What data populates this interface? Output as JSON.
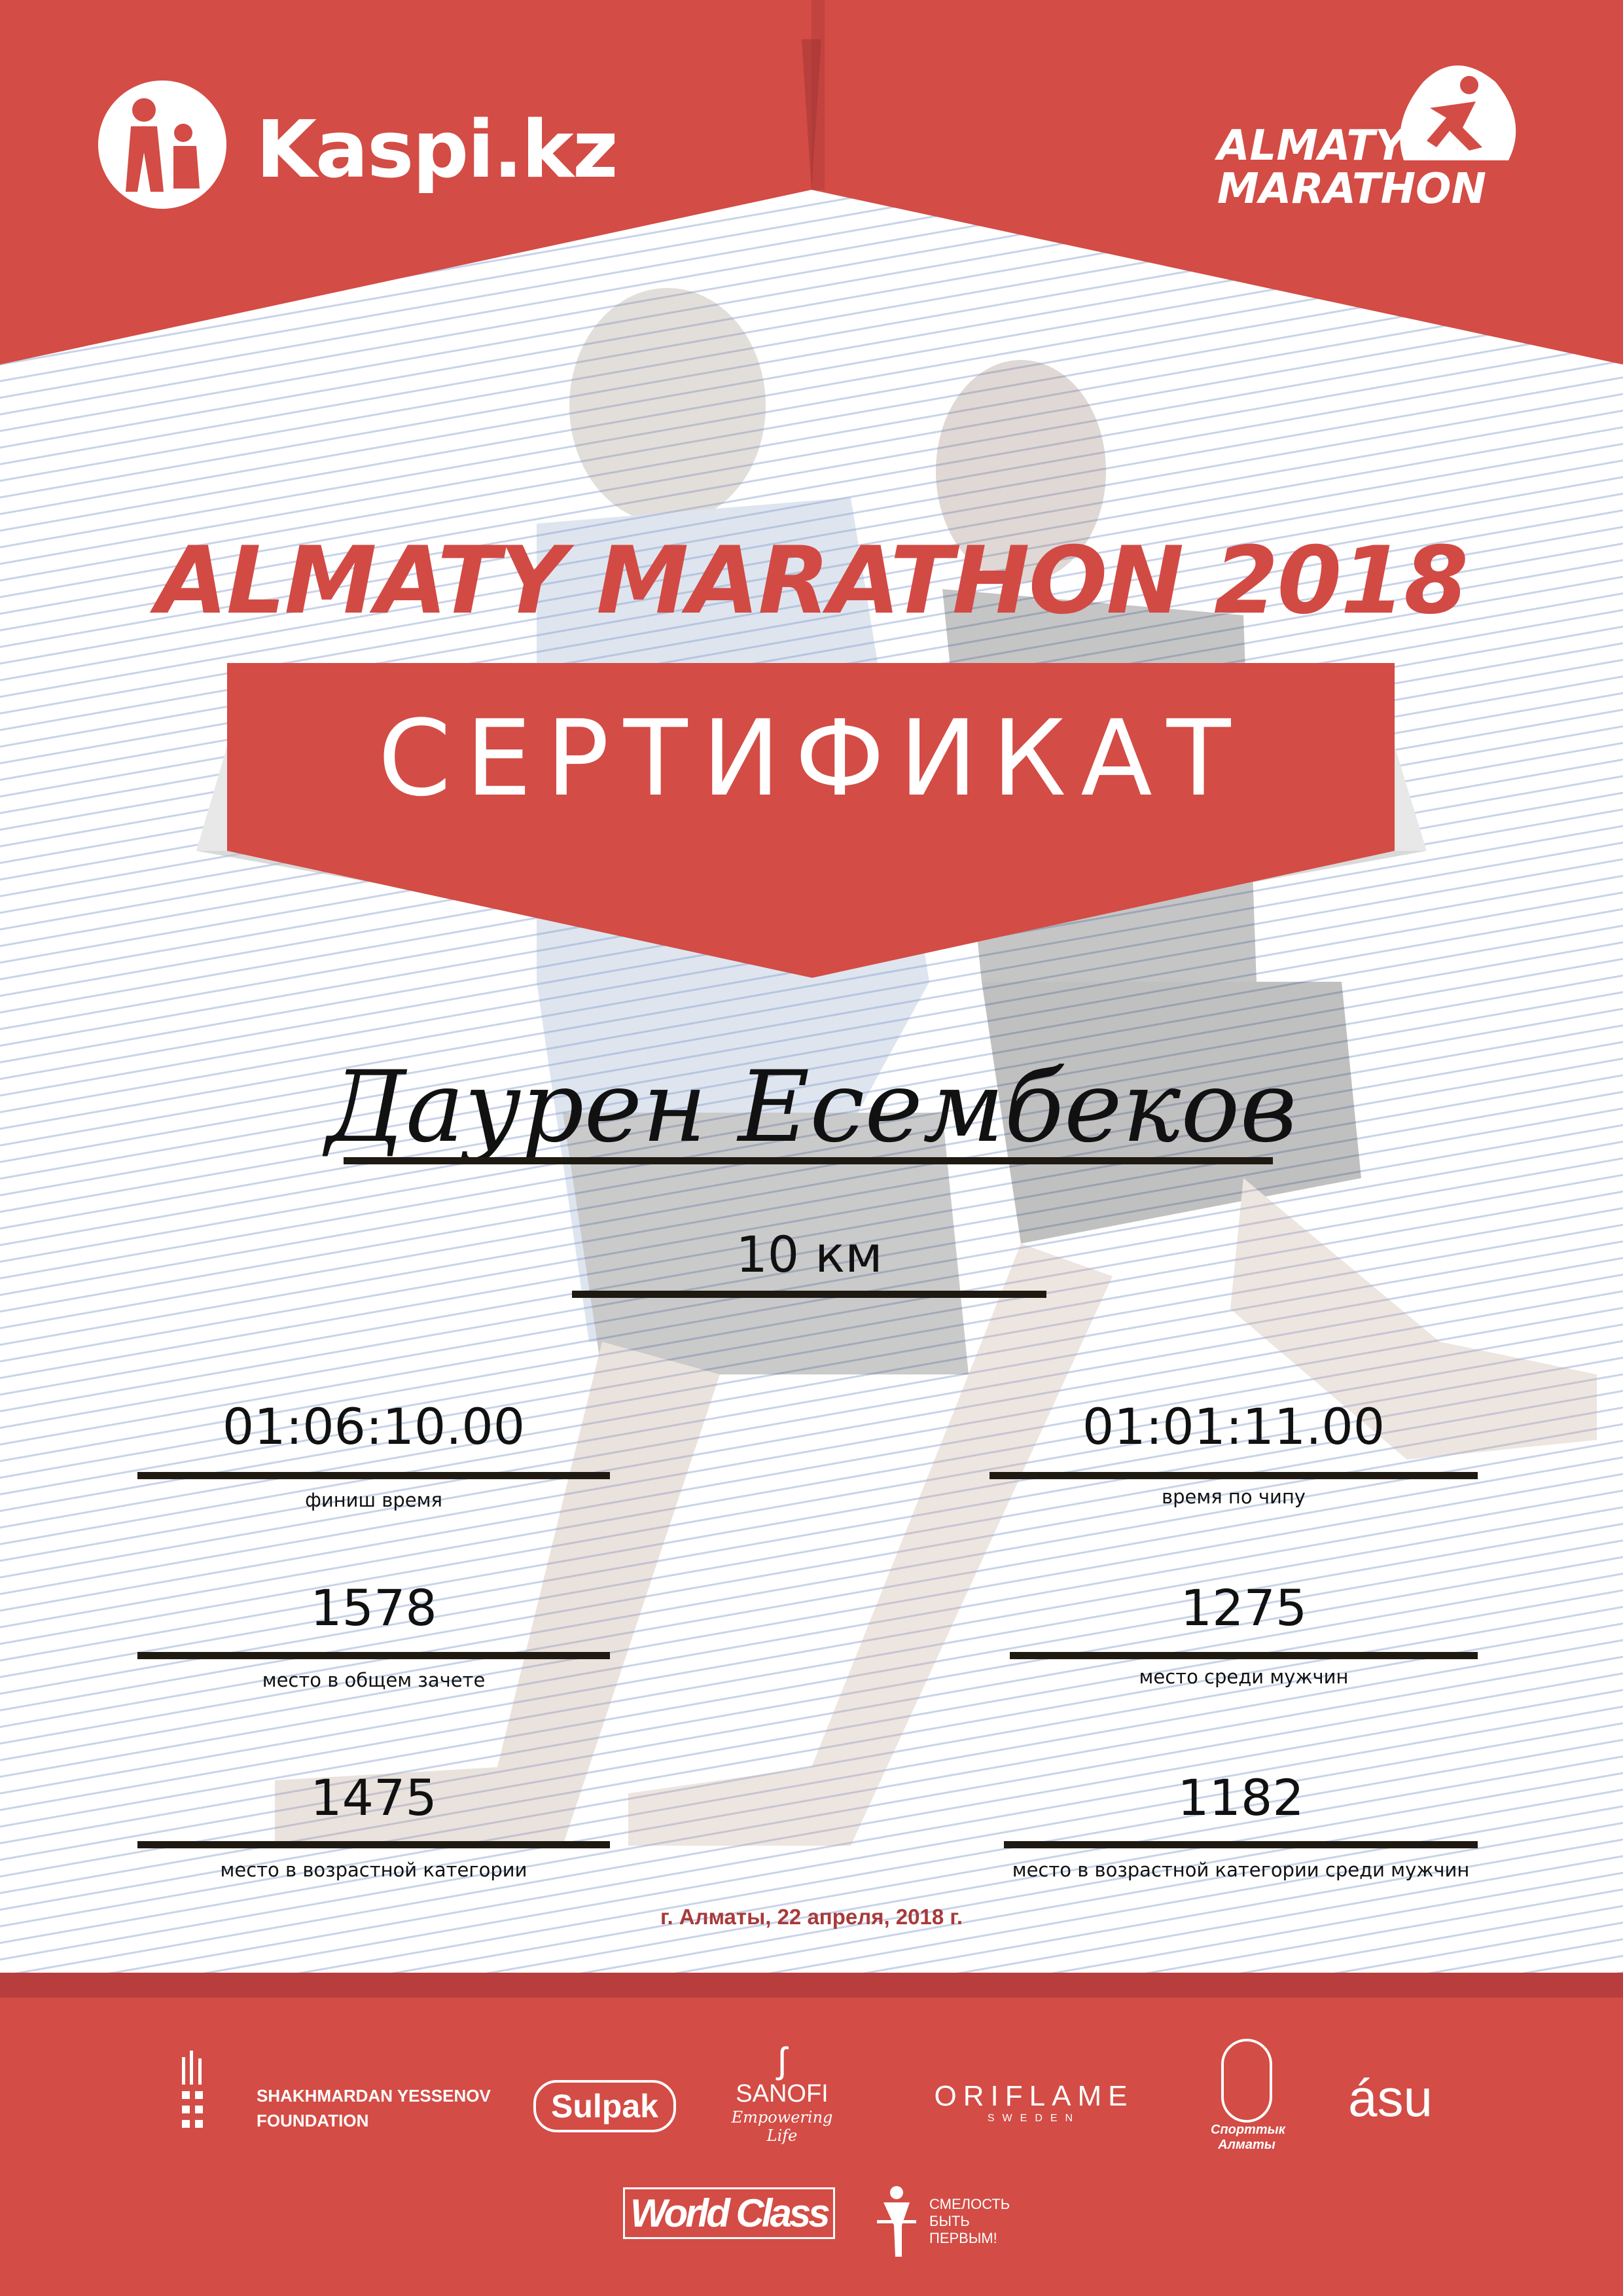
{
  "header": {
    "kaspi_logo_text": "Kaspi.kz",
    "event_logo_line1": "ALMATY",
    "event_logo_line2": "MARATHON"
  },
  "title": "ALMATY MARATHON 2018",
  "certificate_label": "СЕРТИФИКАТ",
  "participant_name": "Даурен Есембеков",
  "distance": "10 км",
  "results": {
    "finish_time": {
      "value": "01:06:10.00",
      "label": "финиш время"
    },
    "chip_time": {
      "value": "01:01:11.00",
      "label": "время по чипу"
    },
    "overall_place": {
      "value": "1578",
      "label": "место в общем зачете"
    },
    "male_place": {
      "value": "1275",
      "label": "место среди мужчин"
    },
    "age_place": {
      "value": "1475",
      "label": "место в возрастной категории"
    },
    "age_male_place": {
      "value": "1182",
      "label": "место в возрастной категории среди мужчин"
    }
  },
  "date_line": "г. Алматы, 22 апреля, 2018 г.",
  "sponsors": {
    "yessenov_line1": "SHAKHMARDAN YESSENOV",
    "yessenov_line2": "FOUNDATION",
    "sulpak": "Sulpak",
    "sanofi": "SANOFI",
    "sanofi_tagline": "Empowering Life",
    "oriflame": "ORIFLAME",
    "oriflame_sub": "SWEDEN",
    "sport_almaty": "Спорттык Алматы",
    "asu": "ásu",
    "worldclass": "World Class",
    "fund_line1": "СМЕЛОСТЬ",
    "fund_line2": "БЫТЬ",
    "fund_line3": "ПЕРВЫМ!"
  },
  "colors": {
    "brand_red": "#d34c45",
    "dark_red": "#b73e3c",
    "date_red": "#a83a3a"
  }
}
